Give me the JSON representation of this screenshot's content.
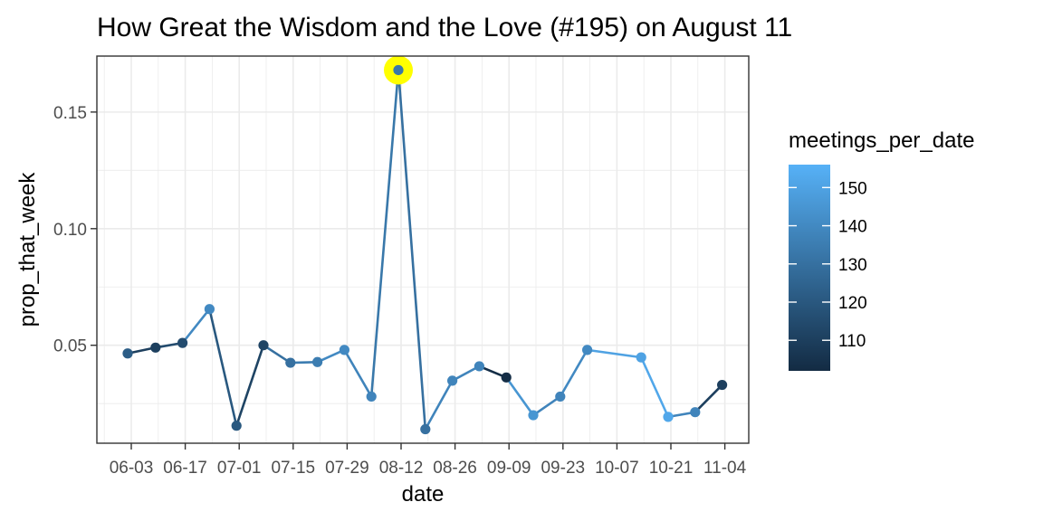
{
  "chart_data": {
    "type": "line",
    "title": "How Great the Wisdom and the Love (#195) on August 11",
    "xlabel": "date",
    "ylabel": "prop_that_week",
    "x_tick_labels": [
      "06-03",
      "06-17",
      "07-01",
      "07-15",
      "07-29",
      "08-12",
      "08-26",
      "09-09",
      "09-23",
      "10-07",
      "10-21",
      "11-04"
    ],
    "y_ticks": [
      0.05,
      0.1,
      0.15
    ],
    "y_tick_labels": [
      "0.05",
      "0.10",
      "0.15"
    ],
    "ylim": [
      0.008,
      0.174
    ],
    "x": [
      "05-30",
      "06-06",
      "06-13",
      "06-20",
      "06-27",
      "07-04",
      "07-11",
      "07-18",
      "07-25",
      "08-01",
      "08-08",
      "08-15",
      "08-22",
      "08-29",
      "09-05",
      "09-12",
      "09-19",
      "09-26",
      "10-10",
      "10-17",
      "10-24",
      "10-31"
    ],
    "series": [
      {
        "values": [
          0.0465,
          0.049,
          0.051,
          0.0655,
          0.0155,
          0.05,
          0.0425,
          0.0428,
          0.048,
          0.028,
          0.168,
          0.014,
          0.0348,
          0.041,
          0.0362,
          0.02,
          0.028,
          0.048,
          0.0448,
          0.0193,
          0.0213,
          0.033
        ],
        "meetings_per_date": [
          122,
          110,
          115,
          140,
          120,
          112,
          130,
          135,
          140,
          138,
          133,
          130,
          138,
          138,
          103,
          145,
          138,
          140,
          150,
          152,
          138,
          110
        ]
      }
    ],
    "highlight": {
      "x": "08-08",
      "value": 0.168,
      "color": "#ffff00"
    },
    "legend": {
      "title": "meetings_per_date",
      "placement": "right",
      "type": "colorbar",
      "range": [
        102,
        156
      ],
      "ticks": [
        110,
        120,
        130,
        140,
        150
      ],
      "tick_labels": [
        "110",
        "120",
        "130",
        "140",
        "150"
      ],
      "low_color": "#132b43",
      "high_color": "#56b1f7"
    },
    "grid": true,
    "background": "#ffffff",
    "grid_color": "#ebebeb"
  }
}
